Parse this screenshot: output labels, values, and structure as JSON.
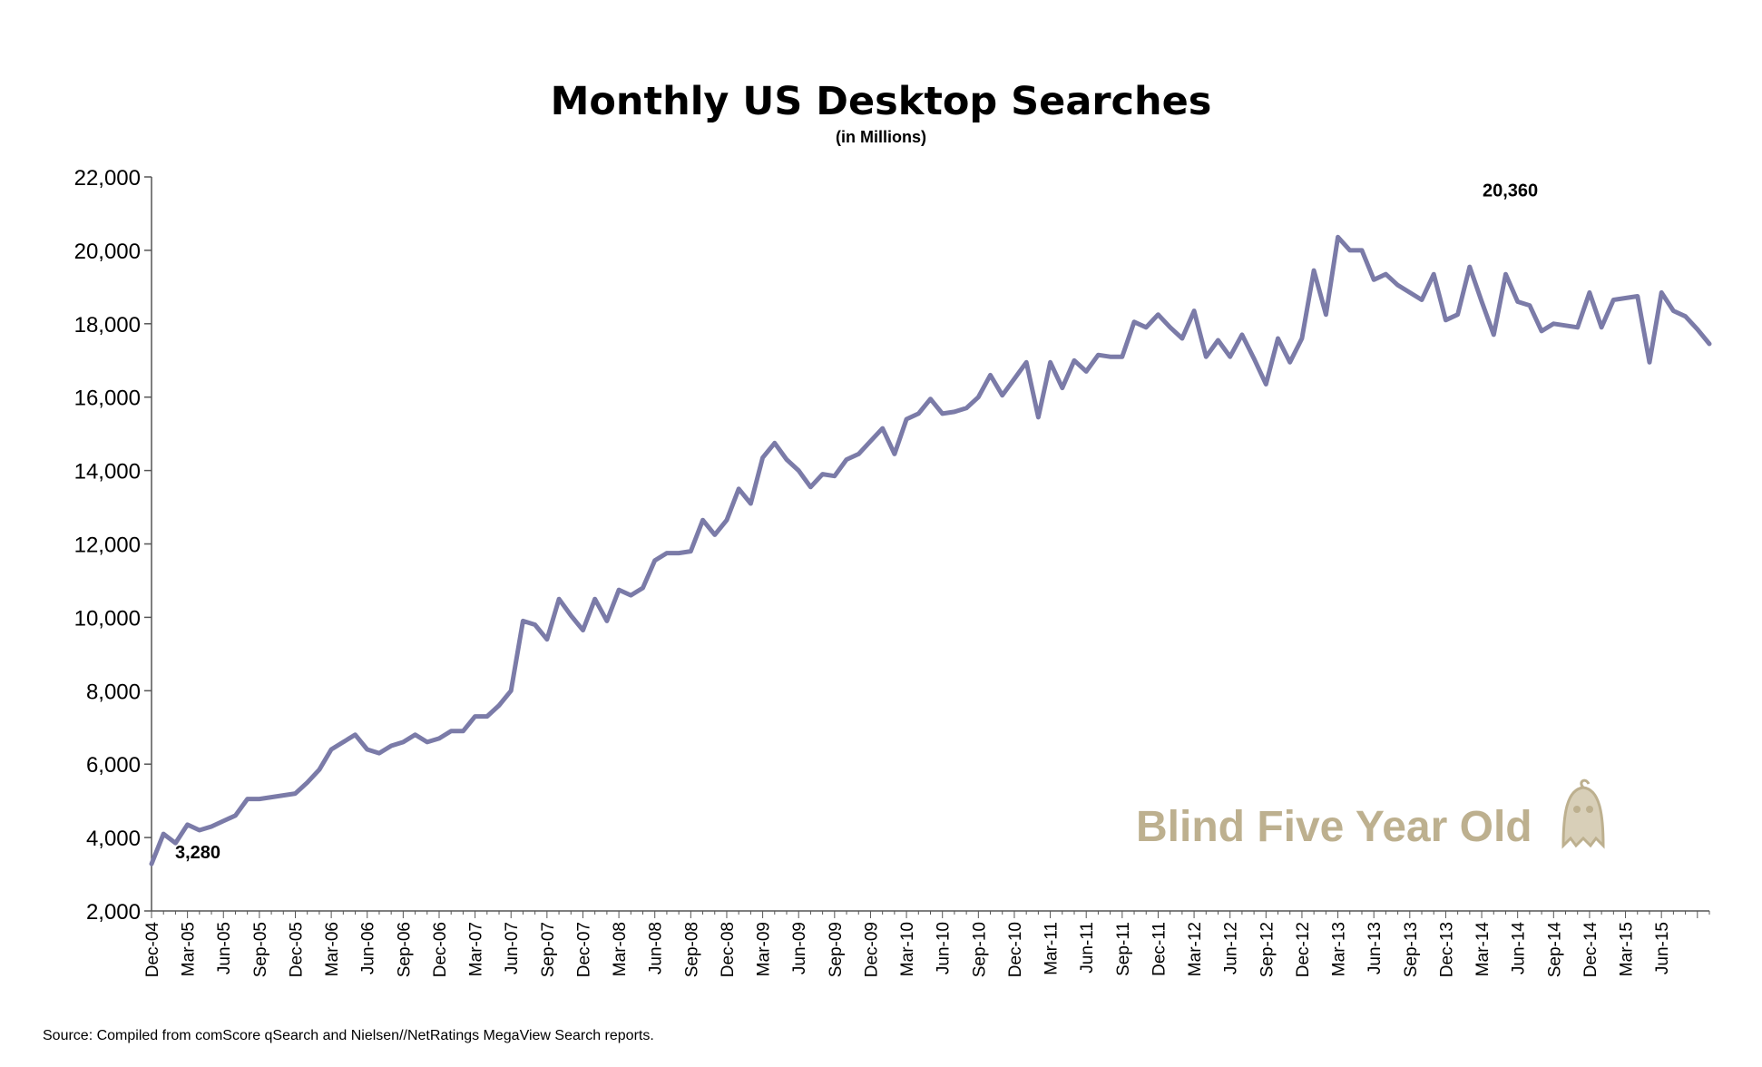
{
  "chart_data": {
    "type": "line",
    "title": "Monthly US Desktop Searches",
    "subtitle": "(in Millions)",
    "xlabel": "",
    "ylabel": "",
    "ylim": [
      2000,
      22000
    ],
    "yticks": [
      "2,000",
      "4,000",
      "6,000",
      "8,000",
      "10,000",
      "12,000",
      "14,000",
      "16,000",
      "18,000",
      "20,000",
      "22,000"
    ],
    "grid": false,
    "legend": "none",
    "x_tick_labels": [
      "Dec-04",
      "Mar-05",
      "Jun-05",
      "Sep-05",
      "Dec-05",
      "Mar-06",
      "Jun-06",
      "Sep-06",
      "Dec-06",
      "Mar-07",
      "Jun-07",
      "Sep-07",
      "Dec-07",
      "Mar-08",
      "Jun-08",
      "Sep-08",
      "Dec-08",
      "Mar-09",
      "Jun-09",
      "Sep-09",
      "Dec-09",
      "Mar-10",
      "Jun-10",
      "Sep-10",
      "Dec-10",
      "Mar-11",
      "Jun-11",
      "Sep-11",
      "Dec-11",
      "Mar-12",
      "Jun-12",
      "Sep-12",
      "Dec-12",
      "Mar-13",
      "Jun-13",
      "Sep-13",
      "Dec-13",
      "Mar-14",
      "Jun-14",
      "Sep-14",
      "Dec-14",
      "Mar-15",
      "Jun-15"
    ],
    "series": [
      {
        "color": "#7b7ba8",
        "values": [
          3280,
          4100,
          3850,
          4350,
          4200,
          4300,
          4450,
          4600,
          5050,
          5050,
          5100,
          5150,
          5200,
          5500,
          5850,
          6400,
          6600,
          6800,
          6400,
          6300,
          6500,
          6600,
          6800,
          6600,
          6700,
          6900,
          6900,
          7300,
          7300,
          7600,
          8000,
          9900,
          9800,
          9400,
          10500,
          10050,
          9650,
          10500,
          9900,
          10750,
          10600,
          10800,
          11550,
          11750,
          11750,
          11800,
          12650,
          12250,
          12650,
          13500,
          13100,
          14350,
          14750,
          14300,
          14000,
          13550,
          13900,
          13850,
          14300,
          14450,
          14800,
          15150,
          14450,
          15400,
          15550,
          15950,
          15550,
          15600,
          15700,
          16000,
          16600,
          16050,
          16500,
          16950,
          15450,
          16950,
          16250,
          17000,
          16700,
          17150,
          17100,
          17100,
          18050,
          17900,
          18250,
          17900,
          17600,
          18350,
          17100,
          17550,
          17100,
          17700,
          17050,
          16350,
          17600,
          16950,
          17600,
          19450,
          18250,
          20360,
          20000,
          20000,
          19200,
          19350,
          19050,
          18850,
          18650,
          19350,
          18100,
          18250,
          19550,
          18600,
          17700,
          19350,
          18600,
          18500,
          17800,
          18000,
          17950,
          17900,
          18850,
          17900,
          18650,
          18700,
          18750,
          16950,
          18850,
          18350,
          18200,
          17850,
          17450
        ]
      }
    ],
    "annotations": [
      {
        "text": "3,280",
        "index": 0,
        "value": 3280
      },
      {
        "text": "20,360",
        "index": 99,
        "value": 20360
      }
    ],
    "watermark": "Blind Five Year Old",
    "source": "Source: Compiled from comScore qSearch and Nielsen//NetRatings MegaView Search reports."
  }
}
